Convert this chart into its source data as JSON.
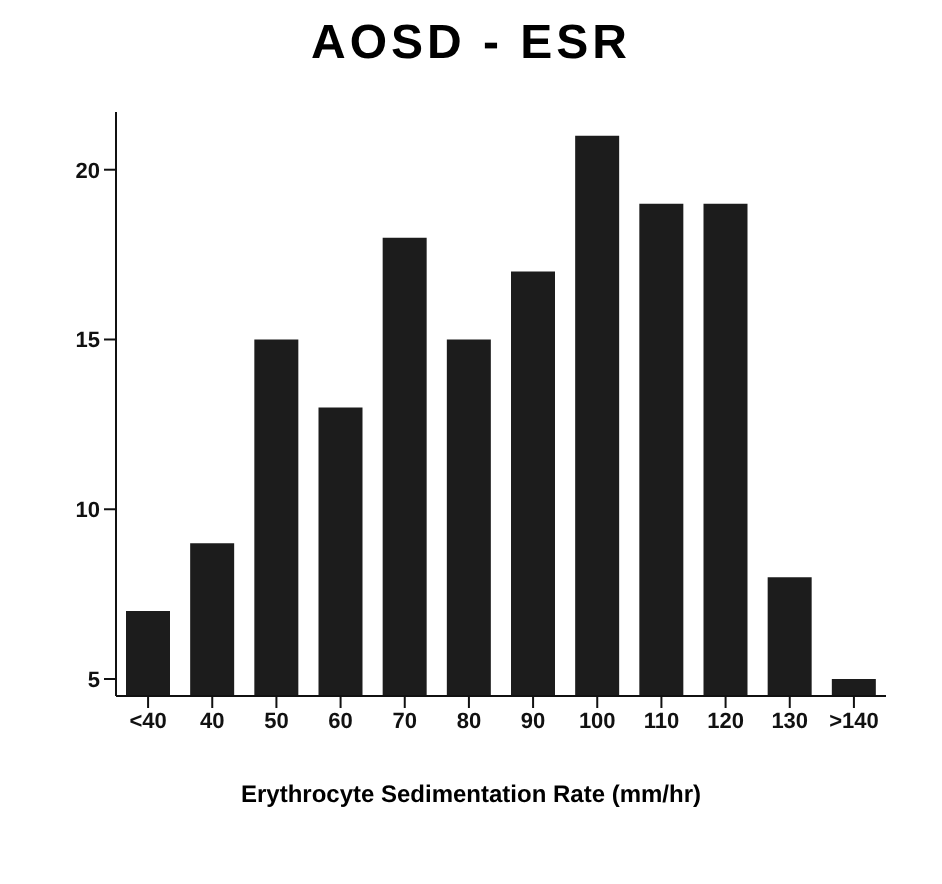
{
  "chart_data": {
    "type": "bar",
    "title": "AOSD - ESR",
    "xlabel": "Erythrocyte Sedimentation Rate (mm/hr)",
    "categories": [
      "<40",
      "40",
      "50",
      "60",
      "70",
      "80",
      "90",
      "100",
      "110",
      "120",
      "130",
      ">140"
    ],
    "values": [
      7,
      9,
      15,
      13,
      18,
      15,
      17,
      21,
      19,
      19,
      8,
      5
    ],
    "color": "#1c1c1c",
    "ylim": [
      4.5,
      21.7
    ],
    "yticks": [
      5,
      10,
      15,
      20
    ]
  }
}
